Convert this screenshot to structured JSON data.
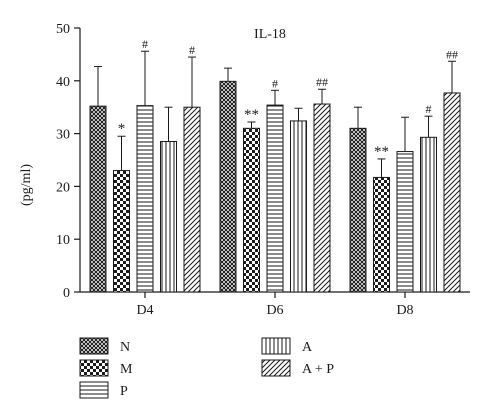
{
  "chart_data": {
    "type": "bar",
    "title": "IL-18",
    "ylabel": "(pg/ml)",
    "xlabel": "",
    "ylim": [
      0,
      50
    ],
    "yticks": [
      0,
      10,
      20,
      30,
      40,
      50
    ],
    "grid": false,
    "legend_position": "bottom",
    "categories": [
      "D4",
      "D6",
      "D8"
    ],
    "series": [
      {
        "name": "N",
        "pattern": "crosshatch-dense",
        "values": [
          35.2,
          39.9,
          31.0
        ],
        "errors": [
          7.5,
          2.5,
          4.0
        ],
        "marks": [
          "",
          "",
          ""
        ]
      },
      {
        "name": "M",
        "pattern": "checkerboard",
        "values": [
          23.0,
          31.0,
          21.7
        ],
        "errors": [
          6.5,
          1.2,
          3.5
        ],
        "marks": [
          "*",
          "**",
          "**"
        ]
      },
      {
        "name": "P",
        "pattern": "horizontal-lines",
        "values": [
          35.3,
          35.4,
          26.6
        ],
        "errors": [
          10.3,
          2.8,
          6.5
        ],
        "marks": [
          "#",
          "#",
          ""
        ]
      },
      {
        "name": "A",
        "pattern": "vertical-lines",
        "values": [
          28.5,
          32.4,
          29.3
        ],
        "errors": [
          6.5,
          2.4,
          4.0
        ],
        "marks": [
          "",
          "",
          "#"
        ]
      },
      {
        "name": "A + P",
        "pattern": "diagonal-lines",
        "values": [
          35.0,
          35.6,
          37.7
        ],
        "errors": [
          9.5,
          2.8,
          6.0
        ],
        "marks": [
          "#",
          "##",
          "##"
        ]
      }
    ]
  },
  "colors": {
    "ink": "#1a1a1a",
    "background": "#ffffff"
  }
}
